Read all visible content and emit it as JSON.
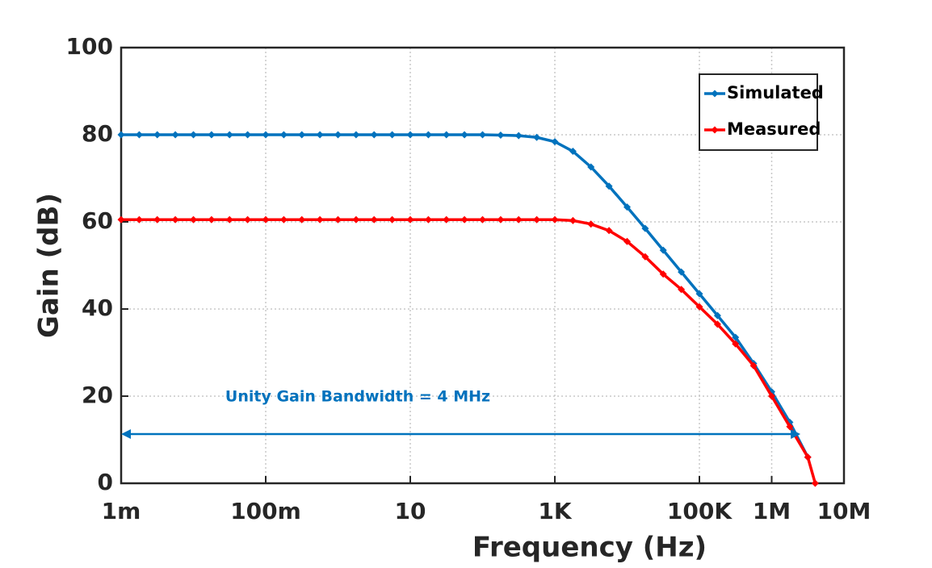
{
  "chart_data": {
    "type": "line",
    "xlabel": "Frequency (Hz)",
    "ylabel": "Gain (dB)",
    "xscale": "log",
    "xlim": [
      0.001,
      10000000
    ],
    "xticks": [
      {
        "value": 0.001,
        "label": "1m"
      },
      {
        "value": 0.1,
        "label": "100m"
      },
      10,
      {
        "value": 1000,
        "label": "1K"
      },
      {
        "value": 100000,
        "label": "100K"
      },
      {
        "value": 1000000,
        "label": "1M"
      },
      {
        "value": 10000000,
        "label": "10M"
      }
    ],
    "ylim": [
      0,
      100
    ],
    "yticks": [
      0,
      20,
      40,
      60,
      80,
      100
    ],
    "grid": true,
    "legend": "upper right",
    "series": [
      {
        "name": "Simulated",
        "color": "#0072bd",
        "x": [
          0.001,
          0.00178,
          0.00316,
          0.00562,
          0.01,
          0.0178,
          0.0316,
          0.0562,
          0.1,
          0.178,
          0.316,
          0.562,
          1,
          1.78,
          3.16,
          5.62,
          10,
          17.8,
          31.6,
          56.2,
          100,
          178,
          316,
          562,
          1000,
          1780,
          3160,
          5620,
          10000,
          17800,
          31600,
          56200,
          100000,
          178000,
          316000,
          562000,
          1000000,
          1780000,
          3160000
        ],
        "values": [
          80,
          80,
          80,
          80,
          80,
          80,
          80,
          80,
          80,
          80,
          80,
          80,
          80,
          80,
          80,
          80,
          80,
          80,
          80,
          80,
          80,
          79.9,
          79.8,
          79.4,
          78.4,
          76.2,
          72.6,
          68.2,
          63.4,
          58.5,
          53.5,
          48.5,
          43.5,
          38.5,
          33.5,
          27.5,
          21,
          14,
          6
        ]
      },
      {
        "name": "Measured",
        "color": "#ff0000",
        "x": [
          0.001,
          0.00178,
          0.00316,
          0.00562,
          0.01,
          0.0178,
          0.0316,
          0.0562,
          0.1,
          0.178,
          0.316,
          0.562,
          1,
          1.78,
          3.16,
          5.62,
          10,
          17.8,
          31.6,
          56.2,
          100,
          178,
          316,
          562,
          1000,
          1780,
          3160,
          5620,
          10000,
          17800,
          31600,
          56200,
          100000,
          178000,
          316000,
          562000,
          1000000,
          1780000,
          3160000,
          4000000
        ],
        "values": [
          60.5,
          60.5,
          60.5,
          60.5,
          60.5,
          60.5,
          60.5,
          60.5,
          60.5,
          60.5,
          60.5,
          60.5,
          60.5,
          60.5,
          60.5,
          60.5,
          60.5,
          60.5,
          60.5,
          60.5,
          60.5,
          60.5,
          60.5,
          60.5,
          60.5,
          60.3,
          59.5,
          58,
          55.5,
          52,
          48,
          44.5,
          40.5,
          36.5,
          32,
          27,
          20,
          13,
          6,
          0
        ]
      }
    ],
    "annotations": [
      {
        "text": "Unity Gain Bandwidth = 4 MHz",
        "color": "#0072bd",
        "arrow_x": [
          0.001,
          2500000
        ],
        "arrow_y": 11.3
      }
    ]
  }
}
